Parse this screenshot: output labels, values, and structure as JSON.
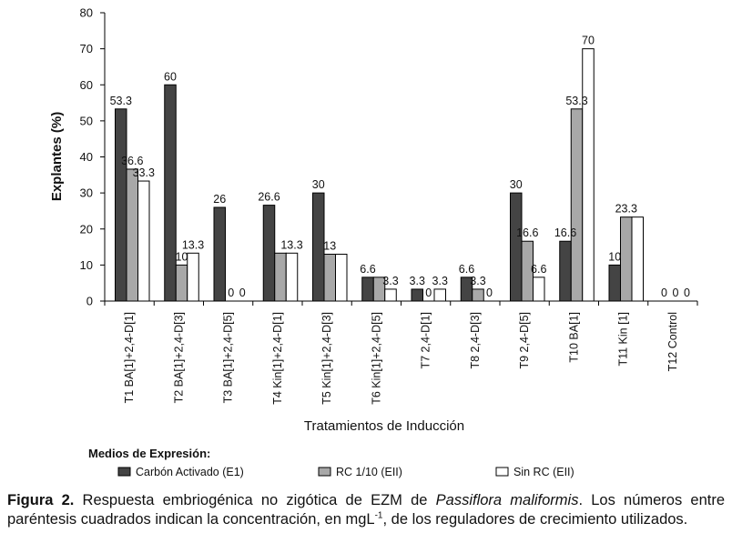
{
  "chart_data": {
    "type": "bar",
    "xlabel": "Tratamientos de Inducción",
    "ylabel": "Explantes (%)",
    "ylim": [
      0,
      80
    ],
    "yticks": [
      0,
      10,
      20,
      30,
      40,
      50,
      60,
      70,
      80
    ],
    "grid": false,
    "legend_title": "Medios de Expresión:",
    "legend_position": "bottom",
    "categories": [
      "T1 BA[1]+2,4-D[1]",
      "T2 BA[1]+2,4-D[3]",
      "T3 BA[1]+2,4-D[5]",
      "T4 Kin[1]+2,4-D[1]",
      "T5 Kin[1]+2,4-D[3]",
      "T6 Kin[1]+2,4-D[5]",
      "T7 2,4-D[1]",
      "T8 2,4-D[3]",
      "T9 2,4-D[5]",
      "T10 BA[1]",
      "T11 Kin [1]",
      "T12 Control"
    ],
    "series": [
      {
        "name": "Carbón Activado (E1)",
        "color": "#444444",
        "values": [
          53.3,
          60,
          26,
          26.6,
          30,
          6.6,
          3.3,
          6.6,
          30,
          16.6,
          10,
          0
        ],
        "labels": [
          "53.3",
          "60",
          "26",
          "26.6",
          "30",
          "6.6",
          "3.3",
          "6.6",
          "30",
          "16.6",
          "10",
          "0"
        ]
      },
      {
        "name": "RC 1/10 (EII)",
        "color": "#a8a8a8",
        "values": [
          36.6,
          10,
          0,
          13.3,
          13,
          6.6,
          0,
          3.3,
          16.6,
          53.3,
          23.3,
          0
        ],
        "labels": [
          "36.6",
          "10",
          "0",
          "",
          "13",
          "",
          "0",
          "3.3",
          "16.6",
          "53.3",
          "23.3",
          "0"
        ]
      },
      {
        "name": "Sin RC (EII)",
        "color": "#ffffff",
        "values": [
          33.3,
          13.3,
          0,
          13.3,
          13,
          3.3,
          3.3,
          0,
          6.6,
          70,
          23.3,
          0
        ],
        "labels": [
          "33.3",
          "13.3",
          "0",
          "13.3",
          "",
          "3.3",
          "3.3",
          "0",
          "6.6",
          "70",
          "",
          "0"
        ]
      }
    ]
  },
  "caption": {
    "label": "Figura 2.",
    "text_1": " Respuesta embriogénica no zigótica de EZM de ",
    "species": "Passiflora maliformis",
    "text_2": ". Los números entre paréntesis cuadrados indican la concentración, en mgL",
    "superscript": "-1",
    "text_3": ", de los reguladores de crecimiento utilizados."
  }
}
